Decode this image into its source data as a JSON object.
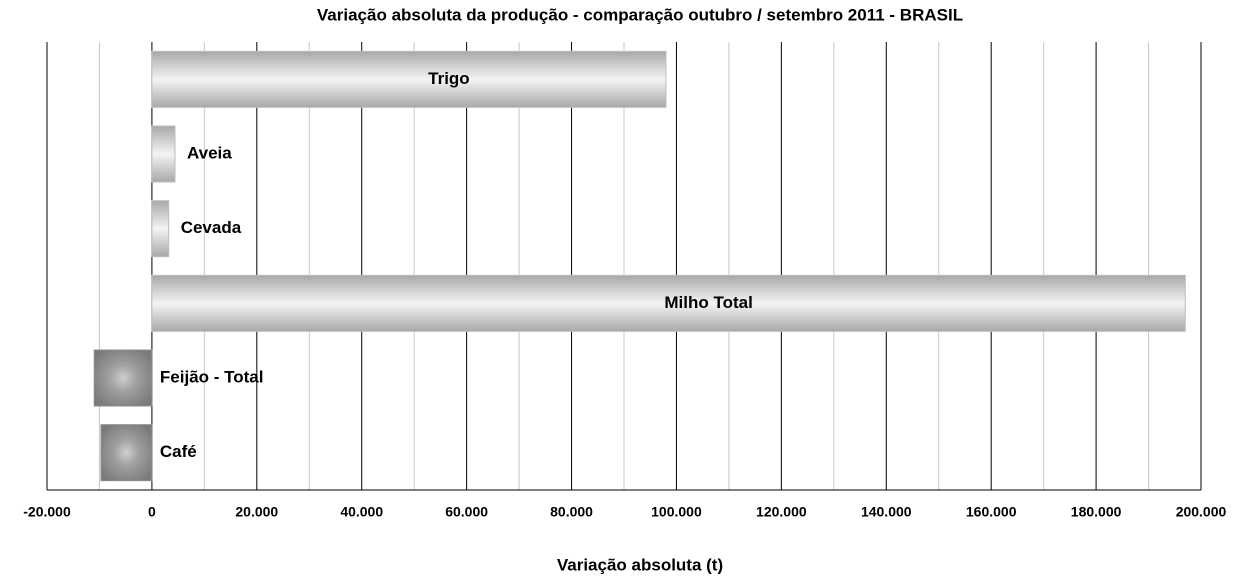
{
  "chart_data": {
    "type": "hbar",
    "title": "Variação absoluta da produção - comparação outubro / setembro 2011 - BRASIL",
    "x_label": "Variação absoluta (t)",
    "categories": [
      "Trigo",
      "Aveia",
      "Cevada",
      "Milho Total",
      "Feijão - Total",
      "Café"
    ],
    "values": [
      98000,
      4400,
      3200,
      197000,
      -11000,
      -9700
    ],
    "positive_color": "#bdbdbd",
    "negative_color": "#8c8c8c",
    "xlim": [
      -20000,
      200000
    ],
    "xticks": [
      {
        "value": -20000,
        "label": "-20.000"
      },
      0,
      {
        "value": 20000,
        "label": "20.000"
      },
      {
        "value": 40000,
        "label": "40.000"
      },
      {
        "value": 60000,
        "label": "60.000"
      },
      {
        "value": 80000,
        "label": "80.000"
      },
      {
        "value": 100000,
        "label": "100.000"
      },
      {
        "value": 120000,
        "label": "120.000"
      },
      {
        "value": 140000,
        "label": "140.000"
      },
      {
        "value": 160000,
        "label": "160.000"
      },
      {
        "value": 180000,
        "label": "180.000"
      },
      {
        "value": 200000,
        "label": "200.000"
      }
    ],
    "minor_xticks": [
      -10000,
      10000,
      30000,
      50000,
      70000,
      90000,
      110000,
      130000,
      150000,
      170000,
      190000
    ],
    "grid": true
  }
}
